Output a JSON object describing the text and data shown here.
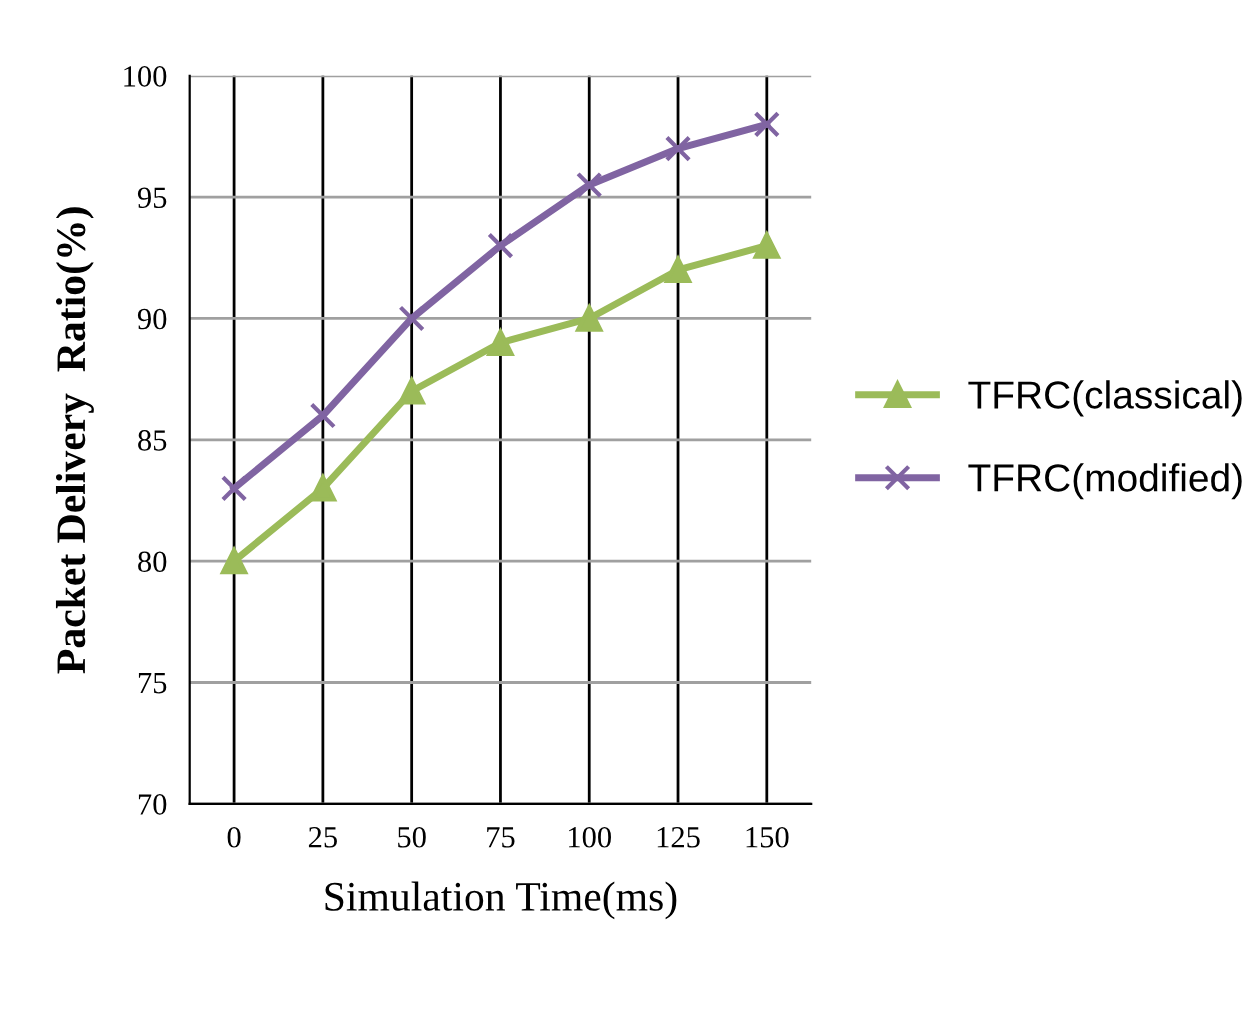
{
  "chart_data": {
    "type": "line",
    "xlabel": "Simulation Time(ms)",
    "ylabel": "Packet Delivery  Ratio(%)",
    "categories": [
      "0",
      "25",
      "50",
      "75",
      "100",
      "125",
      "150"
    ],
    "series": [
      {
        "name": "TFRC(classical)",
        "color": "#9bbb59",
        "marker": "triangle",
        "values": [
          80,
          83,
          87,
          89,
          90,
          92,
          93
        ]
      },
      {
        "name": "TFRC(modified)",
        "color": "#8064a2",
        "marker": "cross",
        "values": [
          83,
          86,
          90,
          93,
          95.5,
          97,
          98
        ]
      }
    ],
    "ylim": [
      70,
      100
    ],
    "yticks": [
      70,
      75,
      80,
      85,
      90,
      95,
      100
    ],
    "grid": true,
    "legend": "right",
    "line_style": "solid"
  }
}
